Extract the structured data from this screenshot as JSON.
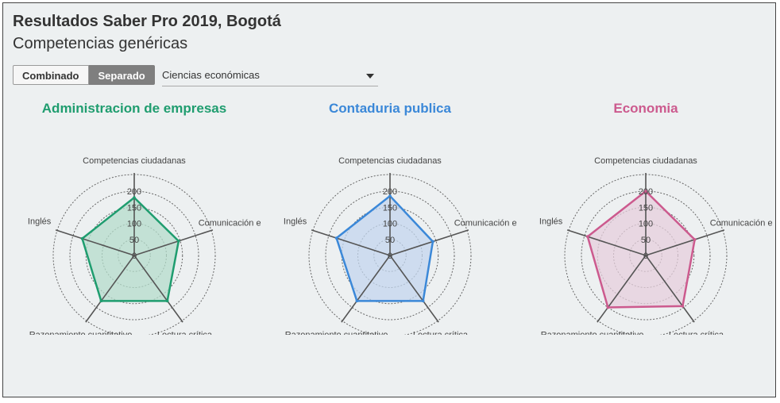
{
  "header": {
    "title": "Resultados Saber Pro 2019, Bogotá",
    "subtitle": "Competencias genéricas"
  },
  "controls": {
    "toggle_combined": "Combinado",
    "toggle_separate": "Separado",
    "selected_mode": "Separado",
    "dropdown_value": "Ciencias económicas"
  },
  "chart_data": [
    {
      "type": "radar",
      "title": "Administracion de empresas",
      "color": "#1f9d6f",
      "fill": "#b4dccb",
      "axes": [
        "Competencias ciudadanas",
        "Comunicación escrita",
        "Lectura crítica",
        "Razonamiento cuantitativo",
        "Inglés"
      ],
      "values": [
        180,
        145,
        175,
        175,
        170
      ],
      "rlim": [
        0,
        200
      ],
      "ticks": [
        0,
        50,
        100,
        150,
        200
      ],
      "grid": true
    },
    {
      "type": "radar",
      "title": "Contaduria publica",
      "color": "#3b88d8",
      "fill": "#c3d6ee",
      "axes": [
        "Competencias ciudadanas",
        "Comunicación escrita",
        "Lectura crítica",
        "Razonamiento cuantitativo",
        "Inglés"
      ],
      "values": [
        185,
        140,
        175,
        175,
        175
      ],
      "rlim": [
        0,
        200
      ],
      "ticks": [
        0,
        50,
        100,
        150,
        200
      ],
      "grid": true
    },
    {
      "type": "radar",
      "title": "Economia",
      "color": "#cc5a8e",
      "fill": "#e6cfdc",
      "axes": [
        "Competencias ciudadanas",
        "Comunicación escrita",
        "Lectura crítica",
        "Razonamiento cuantitativo",
        "Inglés"
      ],
      "values": [
        200,
        160,
        195,
        200,
        190
      ],
      "rlim": [
        0,
        200
      ],
      "ticks": [
        0,
        50,
        100,
        150,
        200
      ],
      "grid": true
    }
  ]
}
